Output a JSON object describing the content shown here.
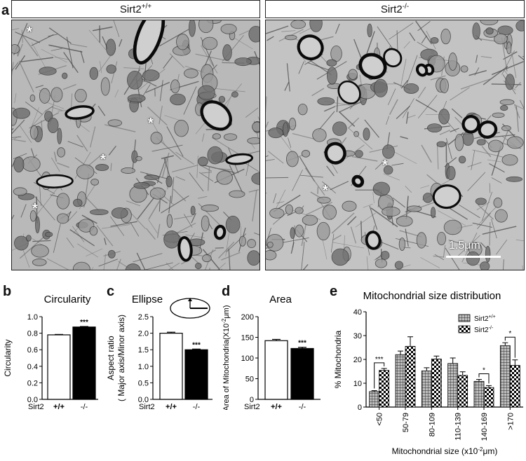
{
  "panel_a": {
    "letter": "a",
    "left_header": "Sirt2+/+",
    "right_header": "Sirt2-/-",
    "scale_label": "1.5μm",
    "star": "*"
  },
  "chart_data": [
    {
      "panel": "b",
      "type": "bar",
      "title": "Circularity",
      "ylabel": "Circularity",
      "ylim": [
        0,
        1.0
      ],
      "yticks": [
        "0.0",
        "0.2",
        "0.4",
        "0.6",
        "0.8",
        "1.0"
      ],
      "group_label": "Sirt2",
      "categories": [
        "+/+",
        "-/-"
      ],
      "values": [
        0.78,
        0.875
      ],
      "errors": [
        0.005,
        0.006
      ],
      "fills": [
        "#ffffff",
        "#000000"
      ],
      "significance": "***"
    },
    {
      "panel": "c",
      "type": "bar",
      "title": "Ellipse",
      "ylabel": "Aspect ratio",
      "ylabel2": "( Major axis/Minor axis)",
      "ylim": [
        0,
        2.5
      ],
      "yticks": [
        "0.0",
        "0.5",
        "1.0",
        "1.5",
        "2.0",
        "2.5"
      ],
      "group_label": "Sirt2",
      "categories": [
        "+/+",
        "-/-"
      ],
      "values": [
        2.0,
        1.5
      ],
      "errors": [
        0.03,
        0.02
      ],
      "fills": [
        "#ffffff",
        "#000000"
      ],
      "significance": "***"
    },
    {
      "panel": "d",
      "type": "bar",
      "title": "Area",
      "ylabel": "Area of Mitochondria(X10",
      "ylabel_sup": "-2",
      "ylabel_unit": "μm)",
      "ylim": [
        0,
        200
      ],
      "yticks": [
        "0",
        "50",
        "100",
        "150",
        "200"
      ],
      "group_label": "Sirt2",
      "categories": [
        "+/+",
        "-/-"
      ],
      "values": [
        142,
        123
      ],
      "errors": [
        3,
        3
      ],
      "fills": [
        "#ffffff",
        "#000000"
      ],
      "significance": "***"
    },
    {
      "panel": "e",
      "type": "bar",
      "title": "Mitochondrial size distribution",
      "ylabel": "% Mitochondria",
      "xlabel": "Mitochondrial size (x10",
      "xlabel_sup": "-2",
      "xlabel_unit": "μm)",
      "ylim": [
        0,
        40
      ],
      "yticks": [
        "0",
        "10",
        "20",
        "30",
        "40"
      ],
      "categories": [
        "<50",
        "50-79",
        "80-109",
        "110-139",
        "140-169",
        ">170"
      ],
      "series": [
        {
          "name": "Sirt2",
          "sup": "+/+",
          "values": [
            6.5,
            22,
            15.2,
            18.3,
            10.8,
            25.8
          ],
          "errors": [
            0.4,
            1.5,
            1.3,
            2.3,
            0.8,
            1.2
          ],
          "pattern": "grid"
        },
        {
          "name": "Sirt2",
          "sup": "-/-",
          "values": [
            15.4,
            25.5,
            20.2,
            13.3,
            8.2,
            17.5
          ],
          "errors": [
            0.8,
            4.0,
            1.2,
            1.5,
            0.8,
            2.3
          ],
          "pattern": "checker"
        }
      ],
      "significance": [
        {
          "category_index": 0,
          "label": "***"
        },
        {
          "category_index": 4,
          "label": "*"
        },
        {
          "category_index": 5,
          "label": "*"
        }
      ],
      "legend_position": "top-right"
    }
  ]
}
